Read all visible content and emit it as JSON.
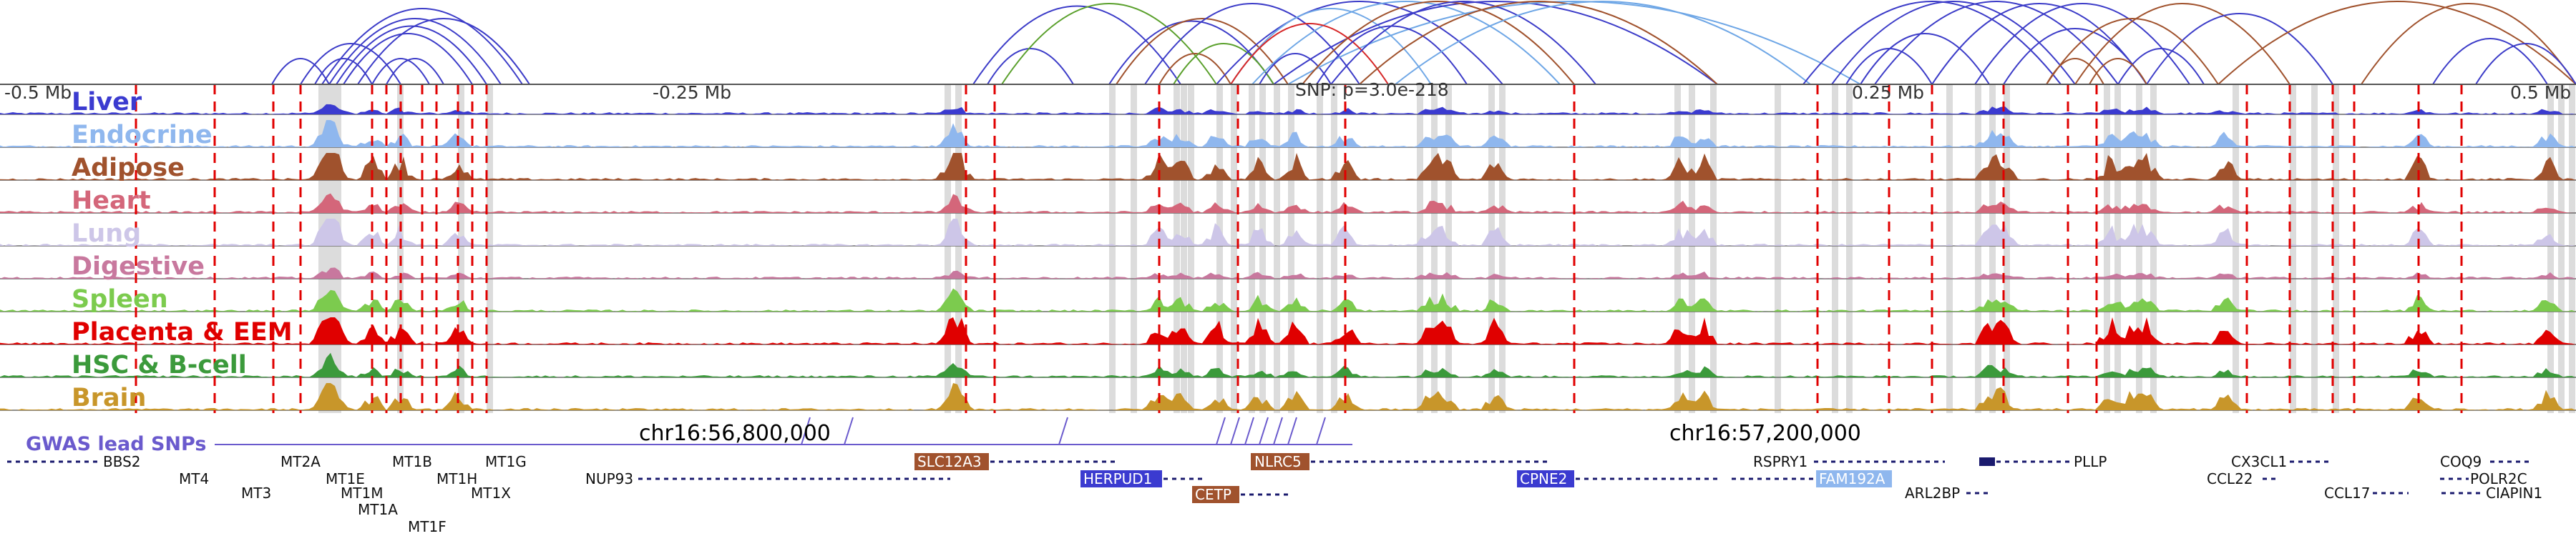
{
  "colors": {
    "loops_primary": "#3c3cc8",
    "loops_secondary": [
      "#6fa7e6",
      "#a0522d",
      "#5aa02c",
      "#d62728"
    ],
    "gwas": "#6a5acd",
    "gwas_line": "#b22222",
    "highlight": "#d8d8d8",
    "baseline": "#555555",
    "gene_strand": "#1a1a6e"
  },
  "coordinates": {
    "left": "-0.5 Mb",
    "mid_left": "-0.25 Mb",
    "mid_right": "0.25 Mb",
    "right": "0.5 Mb",
    "snp_label": "SNP: p=3.0e-218",
    "chr_left": "chr16:56,800,000",
    "chr_right": "chr16:57,200,000"
  },
  "tracks": [
    {
      "label": "Liver",
      "color": "#3b3bd0"
    },
    {
      "label": "Endocrine",
      "color": "#8fb7ee"
    },
    {
      "label": "Adipose",
      "color": "#a0522d"
    },
    {
      "label": "Heart",
      "color": "#d4667a"
    },
    {
      "label": "Lung",
      "color": "#cdc6e8"
    },
    {
      "label": "Digestive",
      "color": "#c8789e"
    },
    {
      "label": "Spleen",
      "color": "#7ccb4e"
    },
    {
      "label": "Placenta & EEM",
      "color": "#e00000"
    },
    {
      "label": "HSC & B-cell",
      "color": "#3b9a3b"
    },
    {
      "label": "Brain",
      "color": "#c8962a"
    }
  ],
  "gwas": {
    "label": "GWAS lead SNPs"
  },
  "genes": {
    "row1": [
      {
        "name": "BBS2",
        "strand": "-",
        "boxed": false
      },
      {
        "name": "MT2A",
        "strand": "+",
        "boxed": false
      },
      {
        "name": "MT1B",
        "strand": "+",
        "boxed": false
      },
      {
        "name": "MT1G",
        "strand": "-",
        "boxed": false
      },
      {
        "name": "SLC12A3",
        "strand": "+",
        "boxed": true,
        "box_color": "#a0522d"
      },
      {
        "name": "NLRC5",
        "strand": "+",
        "boxed": true,
        "box_color": "#a0522d"
      },
      {
        "name": "RSPRY1",
        "strand": "+",
        "boxed": false
      },
      {
        "name": "PLLP",
        "strand": "-",
        "boxed": false
      },
      {
        "name": "CX3CL1",
        "strand": "-",
        "boxed": false
      },
      {
        "name": "COQ9",
        "strand": "+",
        "boxed": false
      }
    ],
    "row2": [
      {
        "name": "MT4",
        "strand": "+",
        "boxed": false
      },
      {
        "name": "MT1E",
        "strand": "+",
        "boxed": false
      },
      {
        "name": "MT1H",
        "strand": "+",
        "boxed": false
      },
      {
        "name": "NUP93",
        "strand": "+",
        "boxed": false
      },
      {
        "name": "HERPUD1",
        "strand": "+",
        "boxed": true,
        "box_color": "#3b3bd0"
      },
      {
        "name": "CPNE2",
        "strand": "+",
        "boxed": true,
        "box_color": "#3b3bd0"
      },
      {
        "name": "FAM192A",
        "strand": "-",
        "boxed": true,
        "box_color": "#8fb7ee"
      },
      {
        "name": "CCL22",
        "strand": "+",
        "boxed": false
      },
      {
        "name": "POLR2C",
        "strand": "+",
        "boxed": false
      }
    ],
    "row3": [
      {
        "name": "MT3",
        "strand": "+",
        "boxed": false
      },
      {
        "name": "MT1M",
        "strand": "+",
        "boxed": false
      },
      {
        "name": "MT1X",
        "strand": "+",
        "boxed": false
      },
      {
        "name": "CETP",
        "strand": "+",
        "boxed": true,
        "box_color": "#a0522d"
      },
      {
        "name": "ARL2BP",
        "strand": "+",
        "boxed": false
      },
      {
        "name": "CCL17",
        "strand": "+",
        "boxed": false
      },
      {
        "name": "CIAPIN1",
        "strand": "-",
        "boxed": false
      }
    ],
    "row4": [
      {
        "name": "MT1A",
        "strand": "+",
        "boxed": false
      }
    ],
    "row5": [
      {
        "name": "MT1F",
        "strand": "+",
        "boxed": false
      }
    ]
  }
}
